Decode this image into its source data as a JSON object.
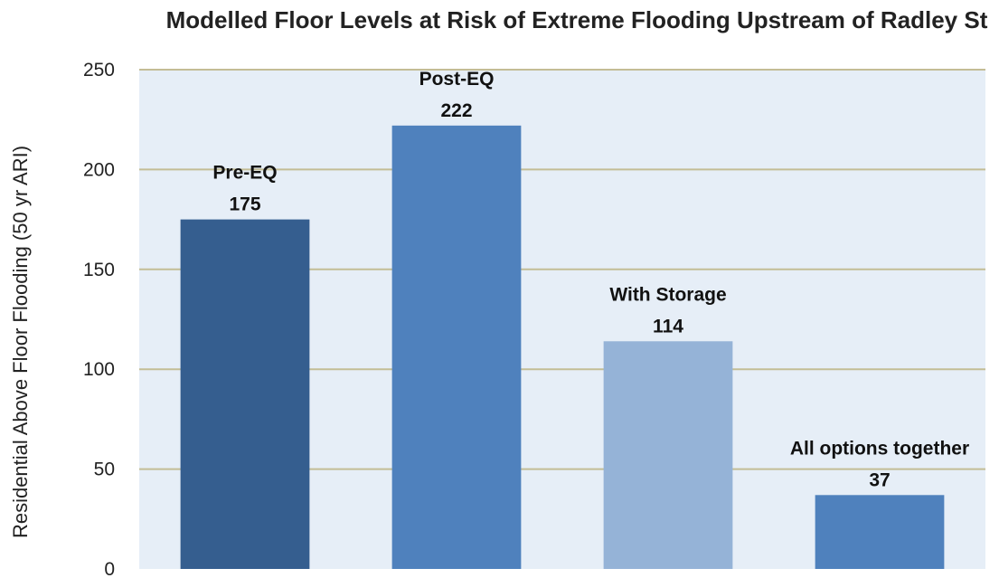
{
  "chart_data": {
    "type": "bar",
    "title": "Modelled Floor Levels at Risk of Extreme Flooding Upstream of Radley St",
    "xlabel": "",
    "ylabel": "Residential Above Floor Flooding (50 yr ARI)",
    "ylim": [
      0,
      250
    ],
    "yticks": [
      "0",
      "50",
      "100",
      "150",
      "200",
      "250"
    ],
    "grid": true,
    "legend": "none",
    "categories": [
      "Pre-EQ",
      "Post-EQ",
      "With Storage",
      "All options together"
    ],
    "values": [
      175,
      222,
      114,
      37
    ],
    "colors": [
      "#355e8f",
      "#4f81bd",
      "#95b3d7",
      "#4f81bd"
    ],
    "plot_background": "#e6eef7",
    "gridline_color": "#c3bd96"
  }
}
